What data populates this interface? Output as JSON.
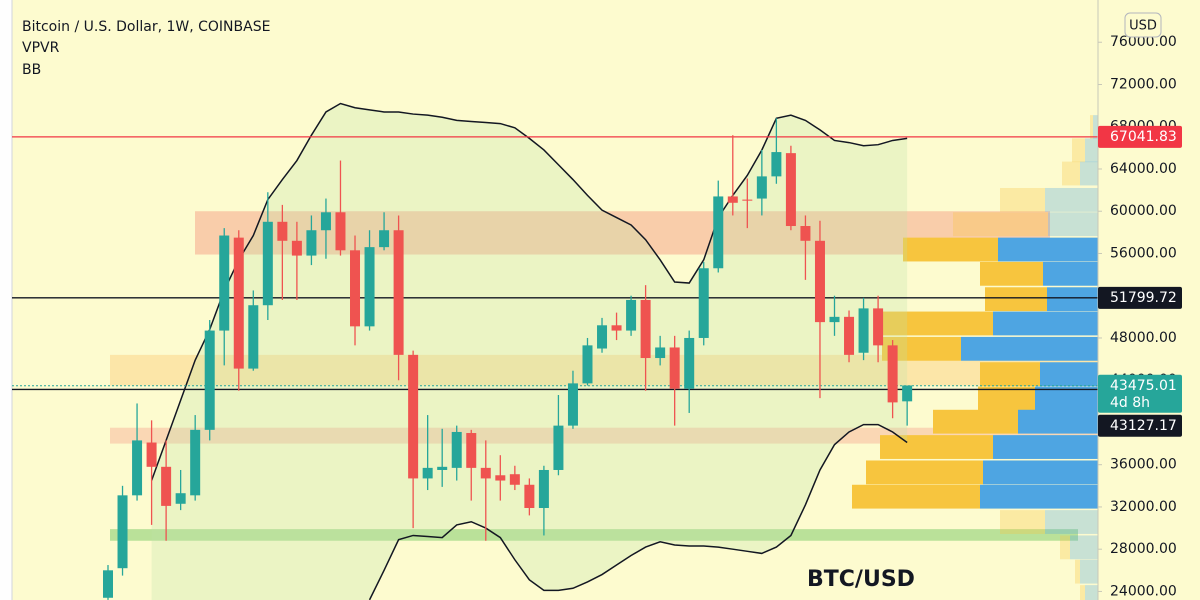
{
  "chart_data": {
    "type": "candlestick",
    "title": "Bitcoin / U.S. Dollar, 1W, COINBASE",
    "indicators": [
      "VPVR",
      "BB"
    ],
    "currency": "USD",
    "annotation": "BTC/USD",
    "up_color": "#26a69a",
    "down_color": "#ef5350",
    "open": [
      23400,
      26200,
      33100,
      38100,
      35800,
      32300,
      33100,
      39300,
      48700,
      57500,
      45100,
      51100,
      59000,
      57200,
      55800,
      58200,
      59900,
      56300,
      49100,
      56600,
      58200,
      46400,
      34700,
      35500,
      35700,
      39000,
      35700,
      35000,
      35100,
      34100,
      31900,
      35500,
      39700,
      43700,
      47000,
      49200,
      48700,
      51600,
      46100,
      47100,
      43200,
      48000,
      54600,
      61400,
      61100,
      61200,
      63300,
      65500,
      58600,
      57200,
      49500,
      50000,
      46600,
      50800,
      47300,
      42000
    ],
    "high": [
      26500,
      34000,
      41800,
      40200,
      38300,
      35500,
      40700,
      49700,
      58400,
      58200,
      52500,
      61800,
      60600,
      59000,
      59600,
      61200,
      64800,
      57700,
      58200,
      59900,
      59600,
      46800,
      40700,
      39400,
      39700,
      39300,
      38300,
      36900,
      35900,
      34700,
      35900,
      42600,
      44900,
      48000,
      49900,
      50400,
      52000,
      53000,
      48200,
      48200,
      48700,
      55200,
      62900,
      67200,
      63100,
      65800,
      68800,
      66200,
      59600,
      59100,
      52000,
      50600,
      51800,
      52000,
      47800,
      43500
    ],
    "low": [
      23200,
      25500,
      32600,
      30300,
      28800,
      31700,
      32600,
      38300,
      45400,
      43000,
      44900,
      49700,
      51600,
      51600,
      54900,
      55500,
      55800,
      47300,
      48700,
      56300,
      44000,
      30000,
      33600,
      33900,
      34500,
      32600,
      28800,
      32600,
      33600,
      31200,
      29300,
      35000,
      39400,
      43500,
      46600,
      47800,
      48200,
      43000,
      45400,
      39700,
      40900,
      47300,
      54200,
      59600,
      58400,
      59600,
      62600,
      58200,
      53500,
      42300,
      48200,
      45700,
      45900,
      45700,
      40400,
      39700
    ],
    "close": [
      26000,
      33100,
      38300,
      35800,
      32100,
      33300,
      39300,
      48700,
      57700,
      45100,
      51100,
      59000,
      57200,
      55800,
      58200,
      59900,
      56300,
      49100,
      56600,
      58200,
      46400,
      34700,
      35700,
      35800,
      39100,
      35700,
      34700,
      34500,
      34100,
      31900,
      35500,
      39700,
      43700,
      47300,
      49200,
      48700,
      51600,
      46100,
      47100,
      43200,
      48000,
      54600,
      61400,
      60800,
      61000,
      63300,
      65600,
      58600,
      57200,
      49500,
      50000,
      46400,
      50800,
      47300,
      41900,
      43500
    ],
    "bb_upper": [
      null,
      null,
      null,
      34500,
      38300,
      42100,
      45900,
      48800,
      52500,
      55400,
      57700,
      61100,
      63000,
      64800,
      67200,
      69400,
      70200,
      69800,
      69600,
      69400,
      69400,
      69200,
      69100,
      68900,
      68600,
      68500,
      68400,
      68300,
      67900,
      66900,
      65800,
      64400,
      63000,
      61500,
      60100,
      59400,
      58700,
      57300,
      55400,
      53300,
      53200,
      55400,
      59400,
      61500,
      63400,
      65800,
      68800,
      69100,
      68600,
      67700,
      66700,
      66500,
      66200,
      66300,
      66700,
      66900
    ],
    "bb_lower": [
      null,
      null,
      null,
      null,
      null,
      null,
      null,
      null,
      null,
      null,
      null,
      null,
      null,
      null,
      null,
      null,
      null,
      null,
      23200,
      26000,
      28900,
      29300,
      29200,
      29100,
      30300,
      30600,
      30000,
      29100,
      27000,
      25100,
      24100,
      24100,
      24300,
      24900,
      25600,
      26500,
      27400,
      28200,
      28700,
      28400,
      28300,
      28300,
      28200,
      28000,
      27800,
      27600,
      28200,
      29300,
      32200,
      35500,
      37900,
      39100,
      39800,
      39800,
      39100,
      38100
    ],
    "zones": [
      {
        "from": 55900,
        "to": 60000,
        "color": "rgba(244,140,120,0.42)"
      },
      {
        "from": 43500,
        "to": 46400,
        "color": "rgba(250,200,110,0.40)"
      },
      {
        "from": 38000,
        "to": 39500,
        "color": "rgba(244,150,130,0.35)"
      },
      {
        "from": 28800,
        "to": 29900,
        "color": "rgba(120,200,100,0.50)"
      }
    ],
    "volume_profile": {
      "row_size": 2350,
      "tops": [
        69100,
        66900,
        64700,
        62200,
        59900,
        57500,
        55200,
        52800,
        50500,
        48100,
        45700,
        43400,
        41200,
        38800,
        36400,
        34100,
        31700,
        29300,
        27000,
        24600
      ],
      "up": [
        5,
        13,
        18,
        53,
        50,
        100,
        55,
        51,
        105,
        137,
        58,
        63,
        80,
        105,
        115,
        118,
        53,
        28,
        18,
        13
      ],
      "down": [
        3,
        13,
        18,
        45,
        95,
        95,
        63,
        62,
        113,
        79,
        60,
        57,
        85,
        113,
        117,
        128,
        45,
        10,
        5,
        5
      ],
      "value_area": [
        31750,
        59850
      ],
      "up_color": "#4ea5e2",
      "down_color": "#f7c53e"
    },
    "price_lines": [
      {
        "value": 67041.83,
        "color": "#f23645",
        "style": "solid"
      },
      {
        "value": 51799.72,
        "color": "#131722",
        "style": "solid"
      },
      {
        "value": 43475.01,
        "color": "#26a69a",
        "style": "dotted",
        "countdown": "4d 8h"
      },
      {
        "value": 43127.17,
        "color": "#131722",
        "style": "solid"
      }
    ],
    "ylim": [
      23000,
      80000
    ],
    "yticks": [
      {
        "value": 24000,
        "label": "24000.00"
      },
      {
        "value": 28000,
        "label": "28000.00"
      },
      {
        "value": 32000,
        "label": "32000.00"
      },
      {
        "value": 36000,
        "label": "36000.00"
      },
      {
        "value": 40000,
        "label": "40000.00"
      },
      {
        "value": 44000,
        "label": "44000.00"
      },
      {
        "value": 48000,
        "label": "48000.00"
      },
      {
        "value": 52000,
        "label": "52000.00"
      },
      {
        "value": 56000,
        "label": "56000.00"
      },
      {
        "value": 60000,
        "label": "60000.00"
      },
      {
        "value": 64000,
        "label": "64000.00"
      },
      {
        "value": 68000,
        "label": "68000.00"
      },
      {
        "value": 72000,
        "label": "72000.00"
      },
      {
        "value": 76000,
        "label": "76000.00"
      }
    ],
    "grid": false
  }
}
